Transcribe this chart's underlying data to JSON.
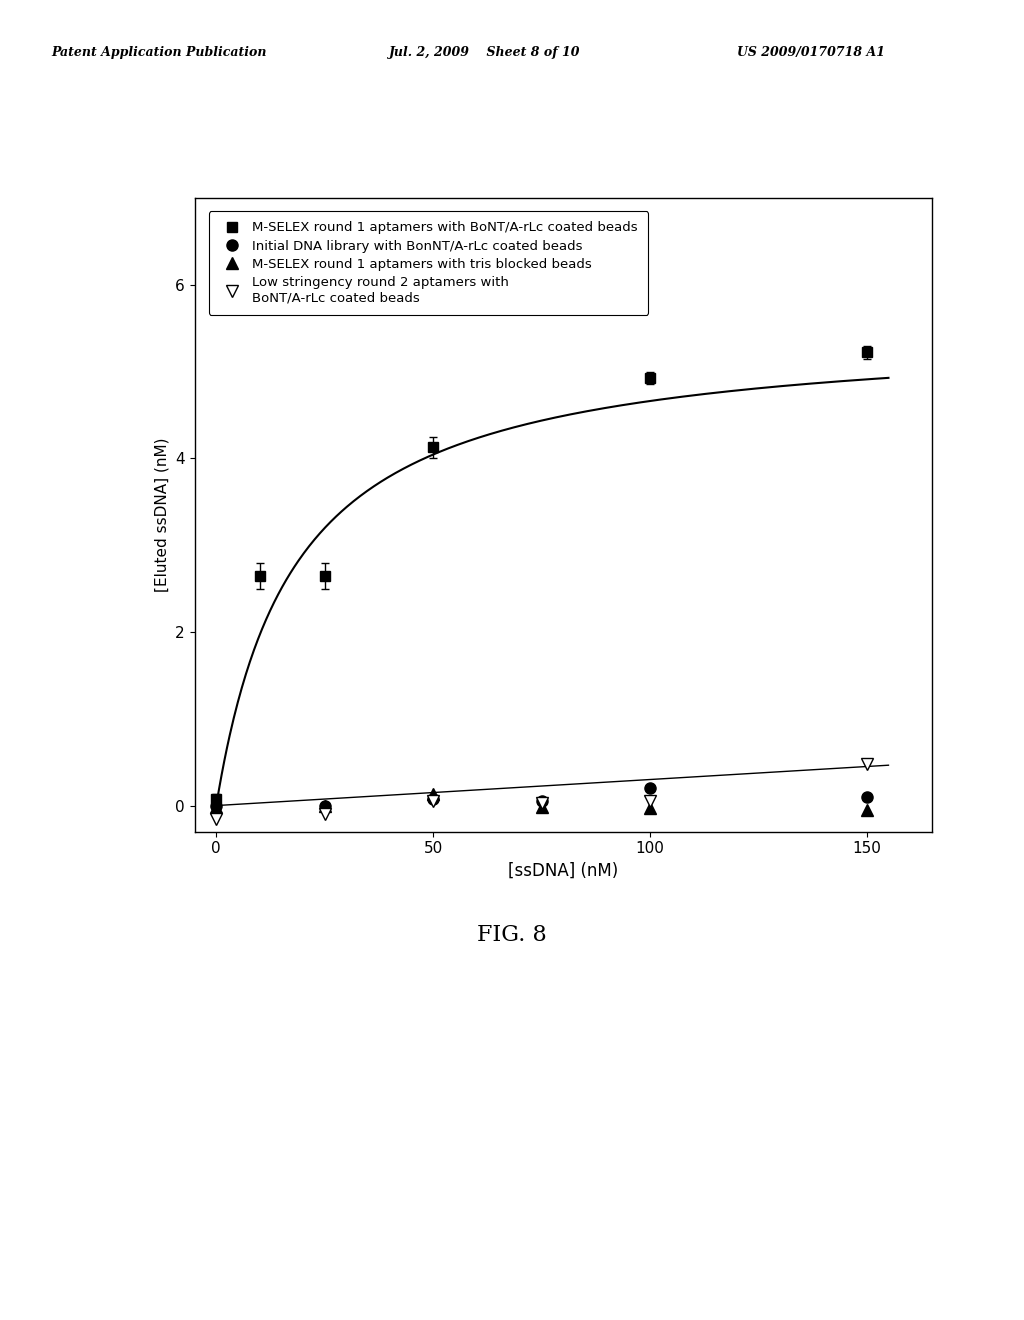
{
  "title": "FIG. 8",
  "xlabel": "[ssDNA] (nM)",
  "ylabel": "[Eluted ssDNA] (nM)",
  "xlim": [
    -5,
    165
  ],
  "ylim": [
    -0.3,
    7.0
  ],
  "xticks": [
    0,
    50,
    100,
    150
  ],
  "yticks": [
    0,
    2,
    4,
    6
  ],
  "header_left": "Patent Application Publication",
  "header_center": "Jul. 2, 2009    Sheet 8 of 10",
  "header_right": "US 2009/0170718 A1",
  "series1_x": [
    0,
    10,
    25,
    50,
    100,
    150
  ],
  "series1_y": [
    0.08,
    2.65,
    2.65,
    4.13,
    4.93,
    5.22
  ],
  "series1_yerr": [
    0.05,
    0.15,
    0.15,
    0.12,
    0.07,
    0.07
  ],
  "series2_x": [
    0,
    25,
    50,
    75,
    100,
    150
  ],
  "series2_y": [
    0.0,
    0.0,
    0.07,
    0.05,
    0.2,
    0.1
  ],
  "series3_x": [
    0,
    25,
    50,
    75,
    100,
    150
  ],
  "series3_y": [
    -0.02,
    0.0,
    0.13,
    -0.02,
    -0.03,
    -0.05
  ],
  "series4_x": [
    0,
    25,
    50,
    75,
    100,
    150
  ],
  "series4_y": [
    -0.15,
    -0.1,
    0.05,
    0.03,
    0.05,
    0.48
  ],
  "Kd": 18.0,
  "Bmax": 5.5,
  "bg_color": "#ffffff",
  "line_color": "#000000"
}
